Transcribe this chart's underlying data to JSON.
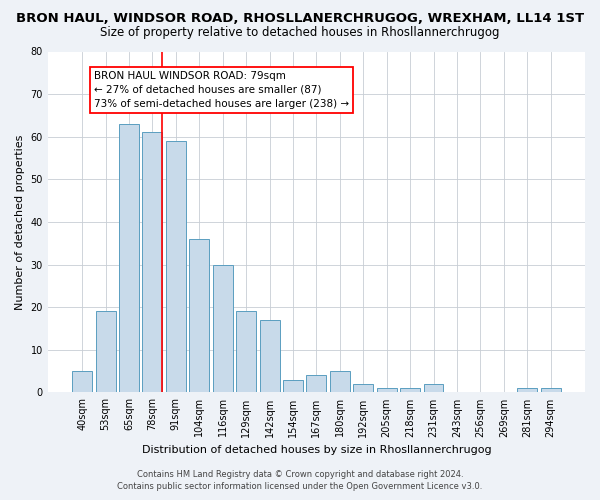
{
  "title": "BRON HAUL, WINDSOR ROAD, RHOSLLANERCHRUGOG, WREXHAM, LL14 1ST",
  "subtitle": "Size of property relative to detached houses in Rhosllannerchrugog",
  "xlabel": "Distribution of detached houses by size in Rhosllannerchrugog",
  "ylabel": "Number of detached properties",
  "categories": [
    "40sqm",
    "53sqm",
    "65sqm",
    "78sqm",
    "91sqm",
    "104sqm",
    "116sqm",
    "129sqm",
    "142sqm",
    "154sqm",
    "167sqm",
    "180sqm",
    "192sqm",
    "205sqm",
    "218sqm",
    "231sqm",
    "243sqm",
    "256sqm",
    "269sqm",
    "281sqm",
    "294sqm"
  ],
  "values": [
    5,
    19,
    63,
    61,
    59,
    36,
    30,
    19,
    17,
    3,
    4,
    5,
    2,
    1,
    1,
    2,
    0,
    0,
    0,
    1,
    1
  ],
  "bar_color": "#c8daea",
  "bar_edge_color": "#5a9ec0",
  "red_line_index": 3,
  "annotation_title": "BRON HAUL WINDSOR ROAD: 79sqm",
  "annotation_line2": "← 27% of detached houses are smaller (87)",
  "annotation_line3": "73% of semi-detached houses are larger (238) →",
  "ylim": [
    0,
    80
  ],
  "yticks": [
    0,
    10,
    20,
    30,
    40,
    50,
    60,
    70,
    80
  ],
  "footer_line1": "Contains HM Land Registry data © Crown copyright and database right 2024.",
  "footer_line2": "Contains public sector information licensed under the Open Government Licence v3.0.",
  "bg_color": "#eef2f7",
  "plot_bg_color": "#ffffff",
  "title_fontsize": 9.5,
  "subtitle_fontsize": 8.5,
  "xlabel_fontsize": 8,
  "ylabel_fontsize": 8,
  "tick_fontsize": 7,
  "annotation_fontsize": 7.5,
  "footer_fontsize": 6
}
